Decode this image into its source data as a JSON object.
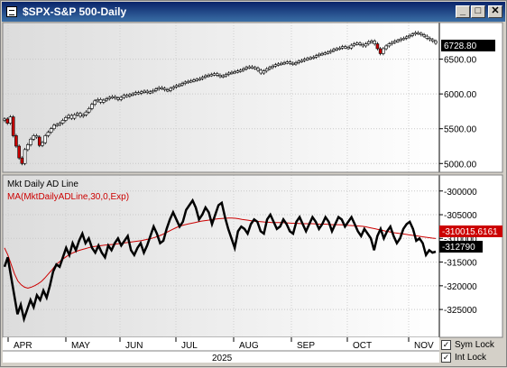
{
  "window": {
    "title": "$SPX-S&P 500-Daily",
    "buttons": [
      "minimize",
      "maximize",
      "close"
    ]
  },
  "footer": {
    "year": "2025",
    "sym_lock_label": "Sym Lock",
    "sym_lock_checked": true,
    "int_lock_label": "Int Lock",
    "int_lock_checked": true
  },
  "colors": {
    "up": "#ffffff",
    "down": "#cc0000",
    "ma": "#cc0000",
    "ad": "#000000",
    "last_tag": "#000000",
    "ma_tag": "#cc0000"
  },
  "chart_data": [
    {
      "type": "candlestick",
      "title": "$SPX-S&P 500-Daily",
      "ylim": [
        4900,
        7000
      ],
      "y_ticks": [
        5000,
        5500,
        6000,
        6500
      ],
      "y_tick_labels": [
        "5000.00",
        "5500.00",
        "6000.00",
        "6500.00"
      ],
      "last_value_label": "6728.80",
      "last_value": 6728.8,
      "grid": true,
      "x_months": [
        "APR",
        "MAY",
        "JUN",
        "JUL",
        "AUG",
        "SEP",
        "OCT",
        "NOV"
      ],
      "closes": [
        5640,
        5580,
        5670,
        5400,
        5250,
        5080,
        5000,
        5200,
        5270,
        5350,
        5400,
        5380,
        5260,
        5300,
        5400,
        5450,
        5500,
        5550,
        5560,
        5580,
        5620,
        5660,
        5690,
        5650,
        5700,
        5720,
        5680,
        5700,
        5740,
        5790,
        5850,
        5900,
        5920,
        5880,
        5910,
        5930,
        5950,
        5960,
        5940,
        5920,
        5950,
        5980,
        5970,
        5990,
        6000,
        6020,
        6010,
        6030,
        6040,
        6020,
        6030,
        6050,
        6070,
        6090,
        6080,
        6060,
        6050,
        6080,
        6100,
        6120,
        6130,
        6150,
        6170,
        6180,
        6190,
        6200,
        6210,
        6220,
        6240,
        6260,
        6270,
        6280,
        6290,
        6270,
        6250,
        6260,
        6280,
        6300,
        6310,
        6320,
        6330,
        6340,
        6360,
        6380,
        6390,
        6380,
        6370,
        6340,
        6300,
        6330,
        6360,
        6380,
        6400,
        6420,
        6430,
        6440,
        6450,
        6460,
        6440,
        6430,
        6450,
        6470,
        6480,
        6500,
        6510,
        6520,
        6530,
        6550,
        6570,
        6580,
        6590,
        6600,
        6620,
        6640,
        6650,
        6660,
        6680,
        6670,
        6660,
        6700,
        6720,
        6730,
        6710,
        6690,
        6720,
        6750,
        6760,
        6720,
        6650,
        6580,
        6650,
        6690,
        6720,
        6740,
        6760,
        6770,
        6790,
        6800,
        6820,
        6840,
        6860,
        6880,
        6870,
        6850,
        6830,
        6800,
        6780,
        6760,
        6728.8
      ]
    },
    {
      "type": "line",
      "title": "Mkt Daily AD Line",
      "overlay_label": "MA(MktDailyADLine,30,0,Exp)",
      "ylim": [
        -330500,
        -297000
      ],
      "y_ticks": [
        -300000,
        -305000,
        -310000,
        -315000,
        -320000,
        -325000
      ],
      "y_tick_labels": [
        "-300000",
        "-305000",
        "-310000",
        "-315000",
        "-320000",
        "-325000"
      ],
      "last_value_label": "-312790",
      "ma_last_label": "-310015.6161",
      "grid": true,
      "series": [
        {
          "name": "Mkt Daily AD Line",
          "values": [
            -316000,
            -314000,
            -318000,
            -322000,
            -326000,
            -324000,
            -327000,
            -325000,
            -323000,
            -324500,
            -322000,
            -323000,
            -321000,
            -322500,
            -320000,
            -317000,
            -315500,
            -316000,
            -314000,
            -312000,
            -313500,
            -311000,
            -312500,
            -310500,
            -309000,
            -311000,
            -310000,
            -312000,
            -313000,
            -311500,
            -313000,
            -314000,
            -311500,
            -312500,
            -311000,
            -310000,
            -311500,
            -310500,
            -309500,
            -312500,
            -313500,
            -312000,
            -311000,
            -313000,
            -311500,
            -309500,
            -307500,
            -309000,
            -311000,
            -310500,
            -308000,
            -306000,
            -304500,
            -306000,
            -307500,
            -306500,
            -304000,
            -303000,
            -302000,
            -303500,
            -306000,
            -305000,
            -303500,
            -304500,
            -307000,
            -305000,
            -303000,
            -302500,
            -305500,
            -308000,
            -310000,
            -312000,
            -308500,
            -307500,
            -308000,
            -309000,
            -307000,
            -306000,
            -306500,
            -308500,
            -309000,
            -306000,
            -305000,
            -306500,
            -308000,
            -307500,
            -306000,
            -307000,
            -308500,
            -309000,
            -306500,
            -305500,
            -307000,
            -308500,
            -307000,
            -305500,
            -306500,
            -308000,
            -307000,
            -305500,
            -306500,
            -308500,
            -307000,
            -305500,
            -306000,
            -307500,
            -306500,
            -305500,
            -307000,
            -308500,
            -309500,
            -308000,
            -309000,
            -310000,
            -312500,
            -309500,
            -308000,
            -310000,
            -308500,
            -307500,
            -309500,
            -311000,
            -310000,
            -308000,
            -307000,
            -306500,
            -308000,
            -310500,
            -310000,
            -311000,
            -313500,
            -312500,
            -313000,
            -312790
          ]
        },
        {
          "name": "MA(MktDailyADLine,30,0,Exp)",
          "values": [
            -312000,
            -313500,
            -315500,
            -317500,
            -319000,
            -319800,
            -320300,
            -320500,
            -320300,
            -320000,
            -319600,
            -319100,
            -318400,
            -317600,
            -316800,
            -315900,
            -315200,
            -314600,
            -314100,
            -313600,
            -313200,
            -312900,
            -312600,
            -312400,
            -312200,
            -312000,
            -311800,
            -311700,
            -311600,
            -311500,
            -311400,
            -311350,
            -311300,
            -311250,
            -311150,
            -311050,
            -310950,
            -310850,
            -310750,
            -310650,
            -310550,
            -310450,
            -310300,
            -310150,
            -310000,
            -309800,
            -309550,
            -309250,
            -308900,
            -308550,
            -308200,
            -307850,
            -307550,
            -307300,
            -307100,
            -306950,
            -306800,
            -306650,
            -306500,
            -306350,
            -306250,
            -306150,
            -306050,
            -305950,
            -305850,
            -305800,
            -305750,
            -305700,
            -305700,
            -305750,
            -305850,
            -306000,
            -306100,
            -306200,
            -306300,
            -306400,
            -306450,
            -306500,
            -306550,
            -306600,
            -306650,
            -306650,
            -306650,
            -306650,
            -306700,
            -306750,
            -306800,
            -306800,
            -306850,
            -306900,
            -306900,
            -306900,
            -306900,
            -306950,
            -307000,
            -307000,
            -307000,
            -307050,
            -307100,
            -307100,
            -307100,
            -307150,
            -307200,
            -307250,
            -307300,
            -307350,
            -307400,
            -307450,
            -307550,
            -307700,
            -307850,
            -308000,
            -308150,
            -308300,
            -308450,
            -308600,
            -308750,
            -308850,
            -308950,
            -309050,
            -309150,
            -309250,
            -309350,
            -309450,
            -309550,
            -309650,
            -309750,
            -309850,
            -309950,
            -310015.6161
          ]
        }
      ]
    }
  ]
}
